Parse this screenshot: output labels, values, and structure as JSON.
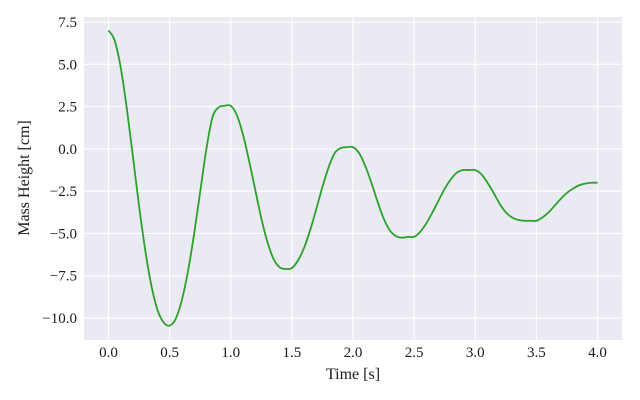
{
  "chart_data": {
    "type": "line",
    "title": "",
    "xlabel": "Time [s]",
    "ylabel": "Mass Height [cm]",
    "xlim": [
      -0.2,
      4.2
    ],
    "ylim": [
      -11.3,
      7.8
    ],
    "xticks": [
      0.0,
      0.5,
      1.0,
      1.5,
      2.0,
      2.5,
      3.0,
      3.5,
      4.0
    ],
    "xtick_labels": [
      "0.0",
      "0.5",
      "1.0",
      "1.5",
      "2.0",
      "2.5",
      "3.0",
      "3.5",
      "4.0"
    ],
    "yticks": [
      7.5,
      5.0,
      2.5,
      0.0,
      -2.5,
      -5.0,
      -7.5,
      -10.0
    ],
    "ytick_labels": [
      "7.5",
      "5.0",
      "2.5",
      "0.0",
      "−2.5",
      "−5.0",
      "−7.5",
      "−10.0"
    ],
    "grid": true,
    "background": "#eaeaf2",
    "series": [
      {
        "color": "#2ca02c",
        "x": [
          0.0,
          0.05,
          0.1,
          0.15,
          0.2,
          0.25,
          0.3,
          0.35,
          0.4,
          0.45,
          0.5,
          0.55,
          0.6,
          0.65,
          0.7,
          0.75,
          0.8,
          0.85,
          0.9,
          0.95,
          1.0,
          1.05,
          1.1,
          1.15,
          1.2,
          1.25,
          1.3,
          1.35,
          1.4,
          1.45,
          1.5,
          1.55,
          1.6,
          1.65,
          1.7,
          1.75,
          1.8,
          1.85,
          1.9,
          1.95,
          2.0,
          2.05,
          2.1,
          2.15,
          2.2,
          2.25,
          2.3,
          2.35,
          2.4,
          2.45,
          2.5,
          2.55,
          2.6,
          2.65,
          2.7,
          2.75,
          2.8,
          2.85,
          2.9,
          2.95,
          3.0,
          3.05,
          3.1,
          3.15,
          3.2,
          3.25,
          3.3,
          3.35,
          3.4,
          3.45,
          3.5,
          3.55,
          3.6,
          3.65,
          3.7,
          3.75,
          3.8,
          3.85,
          3.9,
          3.95,
          4.0
        ],
        "y": [
          7.0,
          6.43,
          4.82,
          2.4,
          -0.45,
          -3.35,
          -5.95,
          -8.05,
          -9.5,
          -10.25,
          -10.45,
          -10.05,
          -8.95,
          -7.25,
          -5.05,
          -2.55,
          -0.05,
          1.85,
          2.45,
          2.55,
          2.55,
          2.0,
          0.85,
          -0.7,
          -2.4,
          -4.1,
          -5.5,
          -6.5,
          -7.0,
          -7.1,
          -7.05,
          -6.6,
          -5.85,
          -4.8,
          -3.55,
          -2.25,
          -1.1,
          -0.25,
          0.05,
          0.1,
          0.1,
          -0.25,
          -1.0,
          -2.0,
          -3.1,
          -4.1,
          -4.8,
          -5.15,
          -5.25,
          -5.2,
          -5.2,
          -4.9,
          -4.4,
          -3.75,
          -3.05,
          -2.35,
          -1.8,
          -1.4,
          -1.25,
          -1.25,
          -1.25,
          -1.5,
          -2.0,
          -2.6,
          -3.25,
          -3.75,
          -4.05,
          -4.2,
          -4.25,
          -4.25,
          -4.25,
          -4.05,
          -3.75,
          -3.35,
          -2.95,
          -2.6,
          -2.35,
          -2.15,
          -2.05,
          -2.0,
          -2.0
        ]
      }
    ]
  }
}
